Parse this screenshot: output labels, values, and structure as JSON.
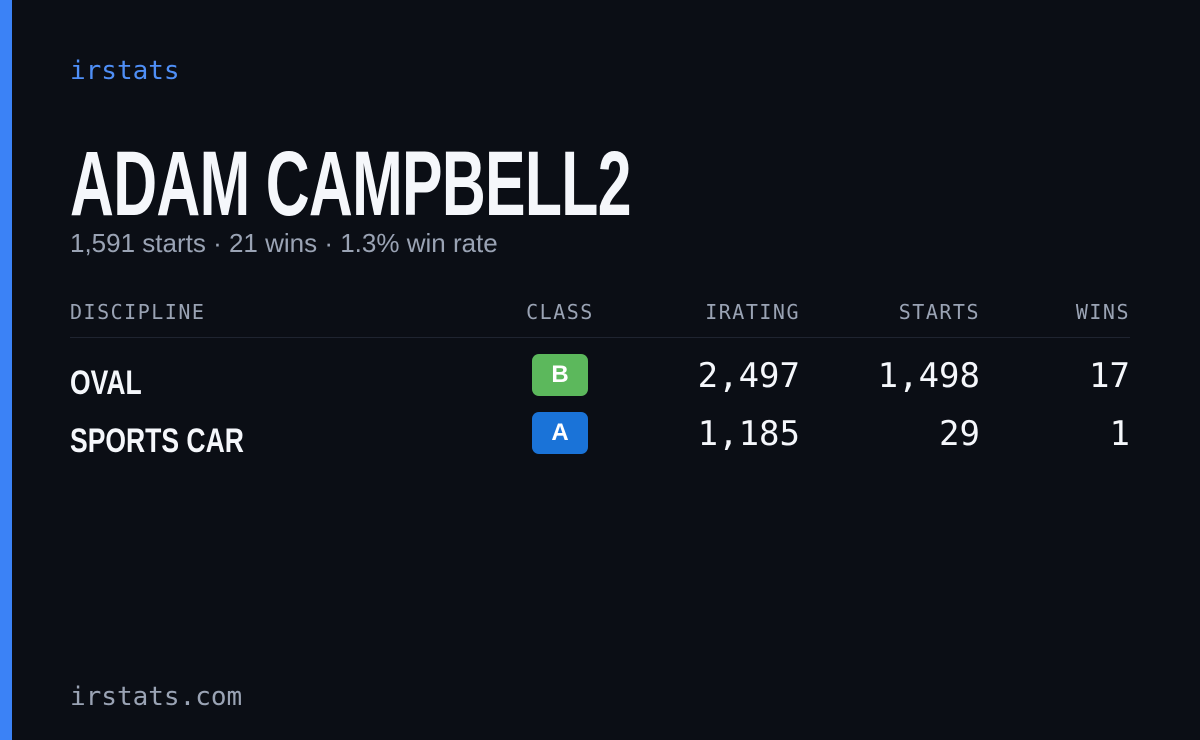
{
  "brand": "irstats",
  "header": {
    "title": "ADAM CAMPBELL2",
    "subtitle": "1,591 starts · 21 wins · 1.3% win rate"
  },
  "table": {
    "columns": [
      "DISCIPLINE",
      "CLASS",
      "IRATING",
      "STARTS",
      "WINS"
    ],
    "rows": [
      [
        "OVAL",
        "B",
        "2,497",
        "1,498",
        "17"
      ],
      [
        "SPORTS CAR",
        "A",
        "1,185",
        "29",
        "1"
      ]
    ]
  },
  "footer": "irstats.com"
}
